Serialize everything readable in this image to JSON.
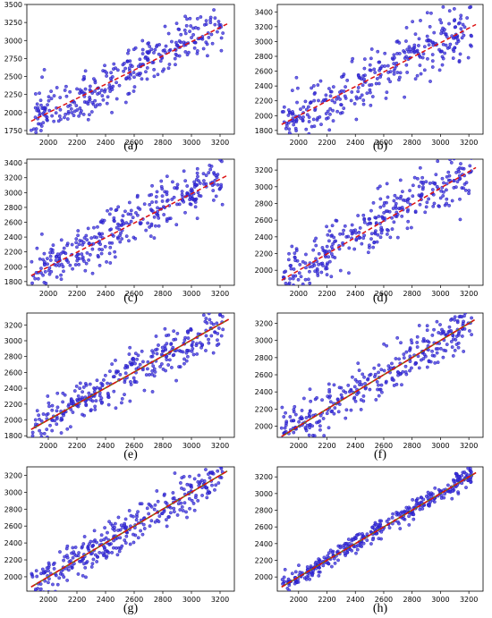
{
  "figure": {
    "panels_order": [
      "a",
      "b",
      "c",
      "d",
      "e",
      "f",
      "g",
      "h"
    ],
    "point_color": "#3a2fe0",
    "point_edge_color": "#1e18b0",
    "fit_line_color": "#dd1111",
    "fit_line_secondary_color": "#7a6a10"
  },
  "chart_data": [
    {
      "type": "scatter",
      "label": "(a)",
      "title": "",
      "xlabel": "",
      "ylabel": "",
      "xlim": [
        1850,
        3300
      ],
      "ylim": [
        1700,
        3500
      ],
      "xticks": [
        2000,
        2200,
        2400,
        2600,
        2800,
        3000,
        3200
      ],
      "yticks": [
        1750,
        2000,
        2250,
        2500,
        2750,
        3000,
        3250,
        3500
      ],
      "x_range": [
        1880,
        3220
      ],
      "spread": 175,
      "n_points": 320,
      "seed": 11,
      "fit_line": {
        "x": [
          1880,
          3250
        ],
        "y": [
          1880,
          3230
        ]
      },
      "grid": false
    },
    {
      "type": "scatter",
      "label": "(b)",
      "title": "",
      "xlabel": "",
      "ylabel": "",
      "xlim": [
        1850,
        3300
      ],
      "ylim": [
        1750,
        3500
      ],
      "xticks": [
        2000,
        2200,
        2400,
        2600,
        2800,
        3000,
        3200
      ],
      "yticks": [
        1800,
        2000,
        2200,
        2400,
        2600,
        2800,
        3000,
        3200,
        3400
      ],
      "x_range": [
        1880,
        3220
      ],
      "spread": 185,
      "n_points": 330,
      "seed": 23,
      "fit_line": {
        "x": [
          1880,
          3250
        ],
        "y": [
          1880,
          3230
        ]
      },
      "grid": false
    },
    {
      "type": "scatter",
      "label": "(c)",
      "title": "",
      "xlabel": "",
      "ylabel": "",
      "xlim": [
        1850,
        3300
      ],
      "ylim": [
        1750,
        3450
      ],
      "xticks": [
        2000,
        2200,
        2400,
        2600,
        2800,
        3000,
        3200
      ],
      "yticks": [
        1800,
        2000,
        2200,
        2400,
        2600,
        2800,
        3000,
        3200,
        3400
      ],
      "x_range": [
        1880,
        3220
      ],
      "spread": 160,
      "n_points": 330,
      "seed": 37,
      "fit_line": {
        "x": [
          1880,
          3250
        ],
        "y": [
          1880,
          3230
        ]
      },
      "grid": false
    },
    {
      "type": "scatter",
      "label": "(d)",
      "title": "",
      "xlabel": "",
      "ylabel": "",
      "xlim": [
        1850,
        3300
      ],
      "ylim": [
        1820,
        3330
      ],
      "xticks": [
        2000,
        2200,
        2400,
        2600,
        2800,
        3000,
        3200
      ],
      "yticks": [
        2000,
        2200,
        2400,
        2600,
        2800,
        3000,
        3200
      ],
      "x_range": [
        1880,
        3220
      ],
      "spread": 165,
      "n_points": 330,
      "seed": 41,
      "fit_line": {
        "x": [
          1880,
          3250
        ],
        "y": [
          1880,
          3230
        ]
      },
      "grid": false
    },
    {
      "type": "scatter",
      "label": "(e)",
      "title": "",
      "xlabel": "",
      "ylabel": "",
      "xlim": [
        1850,
        3300
      ],
      "ylim": [
        1780,
        3350
      ],
      "xticks": [
        2000,
        2200,
        2400,
        2600,
        2800,
        3000,
        3200
      ],
      "yticks": [
        1800,
        2000,
        2200,
        2400,
        2600,
        2800,
        3000,
        3200
      ],
      "x_range": [
        1880,
        3220
      ],
      "spread": 140,
      "n_points": 330,
      "seed": 53,
      "fit_line": {
        "x": [
          1880,
          3260
        ],
        "y": [
          1880,
          3270
        ]
      },
      "grid": false
    },
    {
      "type": "scatter",
      "label": "(f)",
      "title": "",
      "xlabel": "",
      "ylabel": "",
      "xlim": [
        1850,
        3300
      ],
      "ylim": [
        1870,
        3320
      ],
      "xticks": [
        2000,
        2200,
        2400,
        2600,
        2800,
        3000,
        3200
      ],
      "yticks": [
        2000,
        2200,
        2400,
        2600,
        2800,
        3000,
        3200
      ],
      "x_range": [
        1880,
        3220
      ],
      "spread": 125,
      "n_points": 330,
      "seed": 67,
      "fit_line": {
        "x": [
          1880,
          3240
        ],
        "y": [
          1880,
          3240
        ]
      },
      "grid": false
    },
    {
      "type": "scatter",
      "label": "(g)",
      "title": "",
      "xlabel": "",
      "ylabel": "",
      "xlim": [
        1850,
        3300
      ],
      "ylim": [
        1830,
        3300
      ],
      "xticks": [
        2000,
        2200,
        2400,
        2600,
        2800,
        3000,
        3200
      ],
      "yticks": [
        2000,
        2200,
        2400,
        2600,
        2800,
        3000,
        3200
      ],
      "x_range": [
        1880,
        3220
      ],
      "spread": 110,
      "n_points": 330,
      "seed": 79,
      "fit_line": {
        "x": [
          1880,
          3250
        ],
        "y": [
          1880,
          3250
        ]
      },
      "grid": false
    },
    {
      "type": "scatter",
      "label": "(h)",
      "title": "",
      "xlabel": "",
      "ylabel": "",
      "xlim": [
        1850,
        3300
      ],
      "ylim": [
        1830,
        3320
      ],
      "xticks": [
        2000,
        2200,
        2400,
        2600,
        2800,
        3000,
        3200
      ],
      "yticks": [
        2000,
        2200,
        2400,
        2600,
        2800,
        3000,
        3200
      ],
      "x_range": [
        1880,
        3220
      ],
      "spread": 60,
      "n_points": 360,
      "seed": 97,
      "fit_line": {
        "x": [
          1880,
          3250
        ],
        "y": [
          1880,
          3250
        ]
      },
      "grid": false
    }
  ]
}
